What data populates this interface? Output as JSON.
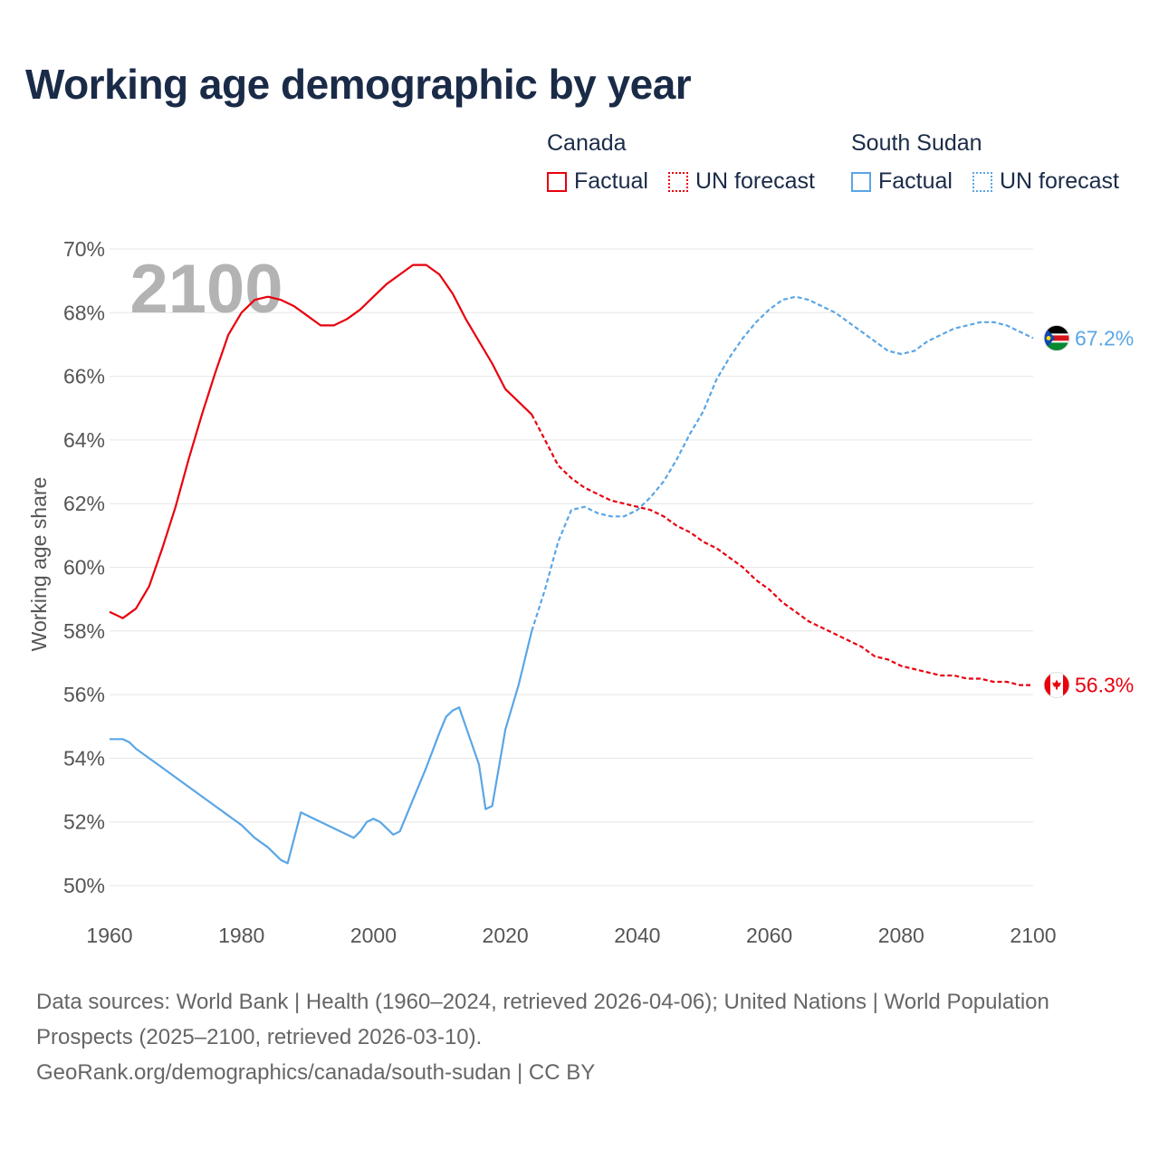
{
  "title": "Working age demographic by year",
  "legend": {
    "groups": [
      {
        "country": "Canada",
        "factual": "Factual",
        "forecast": "UN forecast",
        "color": "#e8000d"
      },
      {
        "country": "South Sudan",
        "factual": "Factual",
        "forecast": "UN forecast",
        "color": "#5aa6e6"
      }
    ]
  },
  "footer": {
    "line1": "Data sources: World Bank | Health (1960–2024, retrieved 2026-04-06); United Nations | World Population Prospects (2025–2100, retrieved 2026-03-10).",
    "line2": "GeoRank.org/demographics/canada/south-sudan | CC BY"
  },
  "chart_data": {
    "type": "line",
    "title": "Working age demographic by year",
    "ylabel": "Working age share",
    "xlabel": "",
    "year_display": "2100",
    "xlim": [
      1960,
      2100
    ],
    "ylim": [
      50,
      70
    ],
    "xticks": [
      1960,
      1980,
      2000,
      2020,
      2040,
      2060,
      2080,
      2100
    ],
    "yticks": [
      50,
      52,
      54,
      56,
      58,
      60,
      62,
      64,
      66,
      68,
      70
    ],
    "ytick_labels": [
      "50%",
      "52%",
      "54%",
      "56%",
      "58%",
      "60%",
      "62%",
      "64%",
      "66%",
      "68%",
      "70%"
    ],
    "grid": true,
    "forecast_start": 2024,
    "series": [
      {
        "name": "Canada",
        "color": "#e8000d",
        "end_label": "56.3%",
        "flag": "canada",
        "x": [
          1960,
          1962,
          1964,
          1966,
          1968,
          1970,
          1972,
          1974,
          1976,
          1978,
          1980,
          1982,
          1984,
          1986,
          1988,
          1990,
          1992,
          1994,
          1996,
          1998,
          2000,
          2002,
          2004,
          2006,
          2007,
          2008,
          2010,
          2012,
          2014,
          2016,
          2018,
          2020,
          2022,
          2024,
          2026,
          2028,
          2030,
          2032,
          2034,
          2036,
          2038,
          2040,
          2042,
          2044,
          2046,
          2048,
          2050,
          2052,
          2054,
          2056,
          2058,
          2060,
          2062,
          2064,
          2066,
          2068,
          2070,
          2072,
          2074,
          2076,
          2078,
          2080,
          2082,
          2084,
          2086,
          2088,
          2090,
          2092,
          2094,
          2096,
          2098,
          2100
        ],
        "values": [
          58.6,
          58.4,
          58.7,
          59.4,
          60.6,
          61.9,
          63.4,
          64.8,
          66.1,
          67.3,
          68.0,
          68.4,
          68.5,
          68.4,
          68.2,
          67.9,
          67.6,
          67.6,
          67.8,
          68.1,
          68.5,
          68.9,
          69.2,
          69.5,
          69.5,
          69.5,
          69.2,
          68.6,
          67.8,
          67.1,
          66.4,
          65.6,
          65.2,
          64.8,
          64.0,
          63.2,
          62.8,
          62.5,
          62.3,
          62.1,
          62.0,
          61.9,
          61.8,
          61.6,
          61.3,
          61.1,
          60.8,
          60.6,
          60.3,
          60.0,
          59.6,
          59.3,
          58.9,
          58.6,
          58.3,
          58.1,
          57.9,
          57.7,
          57.5,
          57.2,
          57.1,
          56.9,
          56.8,
          56.7,
          56.6,
          56.6,
          56.5,
          56.5,
          56.4,
          56.4,
          56.3,
          56.3
        ]
      },
      {
        "name": "South Sudan",
        "color": "#5aa6e6",
        "end_label": "67.2%",
        "flag": "south-sudan",
        "x": [
          1960,
          1962,
          1963,
          1964,
          1966,
          1968,
          1970,
          1972,
          1974,
          1976,
          1978,
          1980,
          1982,
          1984,
          1986,
          1987,
          1988,
          1989,
          1990,
          1992,
          1994,
          1996,
          1997,
          1998,
          1999,
          2000,
          2001,
          2002,
          2003,
          2004,
          2006,
          2008,
          2010,
          2011,
          2012,
          2013,
          2014,
          2015,
          2016,
          2017,
          2018,
          2019,
          2020,
          2022,
          2024,
          2026,
          2028,
          2030,
          2032,
          2034,
          2036,
          2038,
          2040,
          2042,
          2044,
          2046,
          2048,
          2050,
          2052,
          2054,
          2056,
          2058,
          2060,
          2062,
          2064,
          2066,
          2068,
          2070,
          2072,
          2074,
          2076,
          2078,
          2080,
          2082,
          2084,
          2086,
          2088,
          2090,
          2092,
          2094,
          2096,
          2098,
          2100
        ],
        "values": [
          54.6,
          54.6,
          54.5,
          54.3,
          54.0,
          53.7,
          53.4,
          53.1,
          52.8,
          52.5,
          52.2,
          51.9,
          51.5,
          51.2,
          50.8,
          50.7,
          51.5,
          52.3,
          52.2,
          52.0,
          51.8,
          51.6,
          51.5,
          51.7,
          52.0,
          52.1,
          52.0,
          51.8,
          51.6,
          51.7,
          52.7,
          53.7,
          54.8,
          55.3,
          55.5,
          55.6,
          55.0,
          54.4,
          53.8,
          52.4,
          52.5,
          53.7,
          54.9,
          56.3,
          58.0,
          59.3,
          60.8,
          61.8,
          61.9,
          61.7,
          61.6,
          61.6,
          61.8,
          62.2,
          62.7,
          63.4,
          64.2,
          64.9,
          65.9,
          66.6,
          67.2,
          67.7,
          68.1,
          68.4,
          68.5,
          68.4,
          68.2,
          68.0,
          67.7,
          67.4,
          67.1,
          66.8,
          66.7,
          66.8,
          67.1,
          67.3,
          67.5,
          67.6,
          67.7,
          67.7,
          67.6,
          67.4,
          67.2
        ]
      }
    ]
  }
}
